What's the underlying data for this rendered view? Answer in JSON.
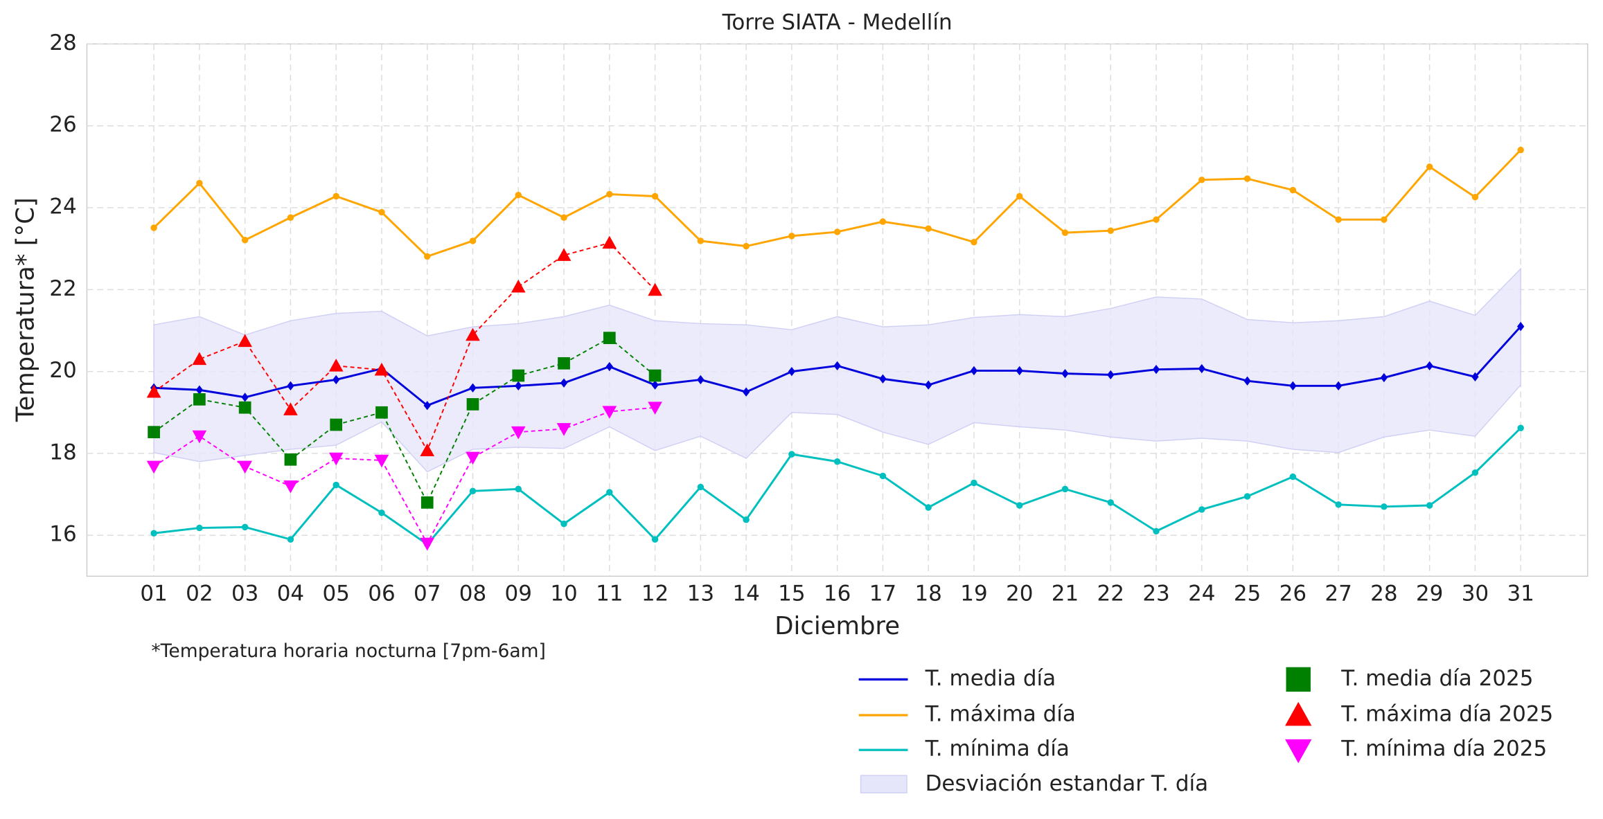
{
  "chart_data": {
    "type": "line",
    "title": "Torre SIATA - Medellín",
    "x_label": "Diciembre",
    "y_label": "Temperatura* [°C]",
    "note": "*Temperatura horaria nocturna [7pm-6am]",
    "categories": [
      "01",
      "02",
      "03",
      "04",
      "05",
      "06",
      "07",
      "08",
      "09",
      "10",
      "11",
      "12",
      "13",
      "14",
      "15",
      "16",
      "17",
      "18",
      "19",
      "20",
      "21",
      "22",
      "23",
      "24",
      "25",
      "26",
      "27",
      "28",
      "29",
      "30",
      "31"
    ],
    "ylim": [
      15,
      28
    ],
    "yticks": [
      16,
      18,
      20,
      22,
      24,
      26,
      28
    ],
    "grid": true,
    "series": [
      {
        "name": "T. media día",
        "color": "#0000dd",
        "marker": "diamond",
        "linestyle": "solid",
        "values": [
          19.6,
          19.55,
          19.37,
          19.65,
          19.8,
          20.07,
          19.17,
          19.6,
          19.65,
          19.72,
          20.12,
          19.67,
          19.8,
          19.5,
          20.0,
          20.14,
          19.82,
          19.67,
          20.02,
          20.02,
          19.95,
          19.92,
          20.05,
          20.07,
          19.77,
          19.65,
          19.65,
          19.85,
          20.14,
          19.87,
          21.1
        ]
      },
      {
        "name": "T. máxima día",
        "color": "#ffa500",
        "marker": "circle",
        "linestyle": "solid",
        "values": [
          23.51,
          24.6,
          23.21,
          23.76,
          24.28,
          23.89,
          22.81,
          23.19,
          24.31,
          23.76,
          24.33,
          24.28,
          23.19,
          23.06,
          23.31,
          23.41,
          23.66,
          23.49,
          23.16,
          24.28,
          23.39,
          23.44,
          23.71,
          24.68,
          24.71,
          24.43,
          23.71,
          23.71,
          25.0,
          24.26,
          25.41
        ]
      },
      {
        "name": "T. mínima día",
        "color": "#00bfbf",
        "marker": "circle",
        "linestyle": "solid",
        "values": [
          16.05,
          16.18,
          16.2,
          15.9,
          17.23,
          16.55,
          15.78,
          17.08,
          17.13,
          16.28,
          17.05,
          15.9,
          17.18,
          16.38,
          17.98,
          17.8,
          17.45,
          16.68,
          17.28,
          16.73,
          17.13,
          16.8,
          16.1,
          16.63,
          16.95,
          17.43,
          16.75,
          16.7,
          16.73,
          17.53,
          18.62
        ]
      },
      {
        "name": "T. media día 2025",
        "color": "#008000",
        "marker": "square",
        "linestyle": "dashed",
        "values": [
          18.52,
          19.32,
          19.12,
          17.85,
          18.7,
          19.0,
          16.8,
          19.2,
          19.9,
          20.2,
          20.82,
          19.9,
          null,
          null,
          null,
          null,
          null,
          null,
          null,
          null,
          null,
          null,
          null,
          null,
          null,
          null,
          null,
          null,
          null,
          null,
          null
        ]
      },
      {
        "name": "T. máxima día 2025",
        "color": "#ff0000",
        "marker": "triangle-up",
        "linestyle": "dashed",
        "values": [
          19.5,
          20.3,
          20.74,
          19.07,
          20.14,
          20.04,
          18.07,
          20.89,
          22.07,
          22.84,
          23.14,
          21.99,
          null,
          null,
          null,
          null,
          null,
          null,
          null,
          null,
          null,
          null,
          null,
          null,
          null,
          null,
          null,
          null,
          null,
          null,
          null
        ]
      },
      {
        "name": "T. mínima día 2025",
        "color": "#ff00ff",
        "marker": "triangle-down",
        "linestyle": "dashed",
        "values": [
          17.68,
          18.42,
          17.68,
          17.2,
          17.88,
          17.83,
          15.8,
          17.9,
          18.52,
          18.6,
          19.02,
          19.12,
          null,
          null,
          null,
          null,
          null,
          null,
          null,
          null,
          null,
          null,
          null,
          null,
          null,
          null,
          null,
          null,
          null,
          null,
          null
        ]
      }
    ],
    "band": {
      "name": "Desviación estandar T. día",
      "color": "#e6e6fa",
      "upper": [
        21.14,
        21.34,
        20.89,
        21.24,
        21.42,
        21.47,
        20.87,
        21.09,
        21.17,
        21.34,
        21.62,
        21.24,
        21.17,
        21.14,
        21.02,
        21.34,
        21.09,
        21.14,
        21.32,
        21.39,
        21.34,
        21.54,
        21.82,
        21.77,
        21.27,
        21.19,
        21.24,
        21.34,
        21.72,
        21.37,
        22.51
      ],
      "lower": [
        18.02,
        17.8,
        17.95,
        18.1,
        18.2,
        18.77,
        17.55,
        18.1,
        18.15,
        18.12,
        18.65,
        18.07,
        18.42,
        17.88,
        19.0,
        18.95,
        18.52,
        18.22,
        18.75,
        18.65,
        18.57,
        18.4,
        18.3,
        18.37,
        18.3,
        18.1,
        18.02,
        18.4,
        18.57,
        18.42,
        19.67
      ]
    }
  }
}
